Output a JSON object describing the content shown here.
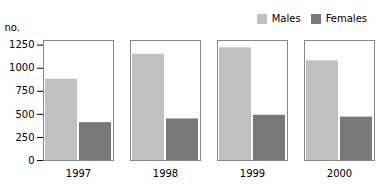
{
  "chart_data": {
    "type": "bar",
    "categories": [
      "1997",
      "1998",
      "1999",
      "2000"
    ],
    "series": [
      {
        "name": "Males",
        "color": "#c0c0c0",
        "values": [
          880,
          1150,
          1220,
          1080
        ]
      },
      {
        "name": "Females",
        "color": "#787878",
        "values": [
          410,
          450,
          490,
          470
        ]
      }
    ],
    "ylabel": "no.",
    "ylim": [
      0,
      1300
    ],
    "yticks": [
      0,
      250,
      500,
      750,
      1000,
      1250
    ],
    "legend": "upper right",
    "grid": false
  }
}
